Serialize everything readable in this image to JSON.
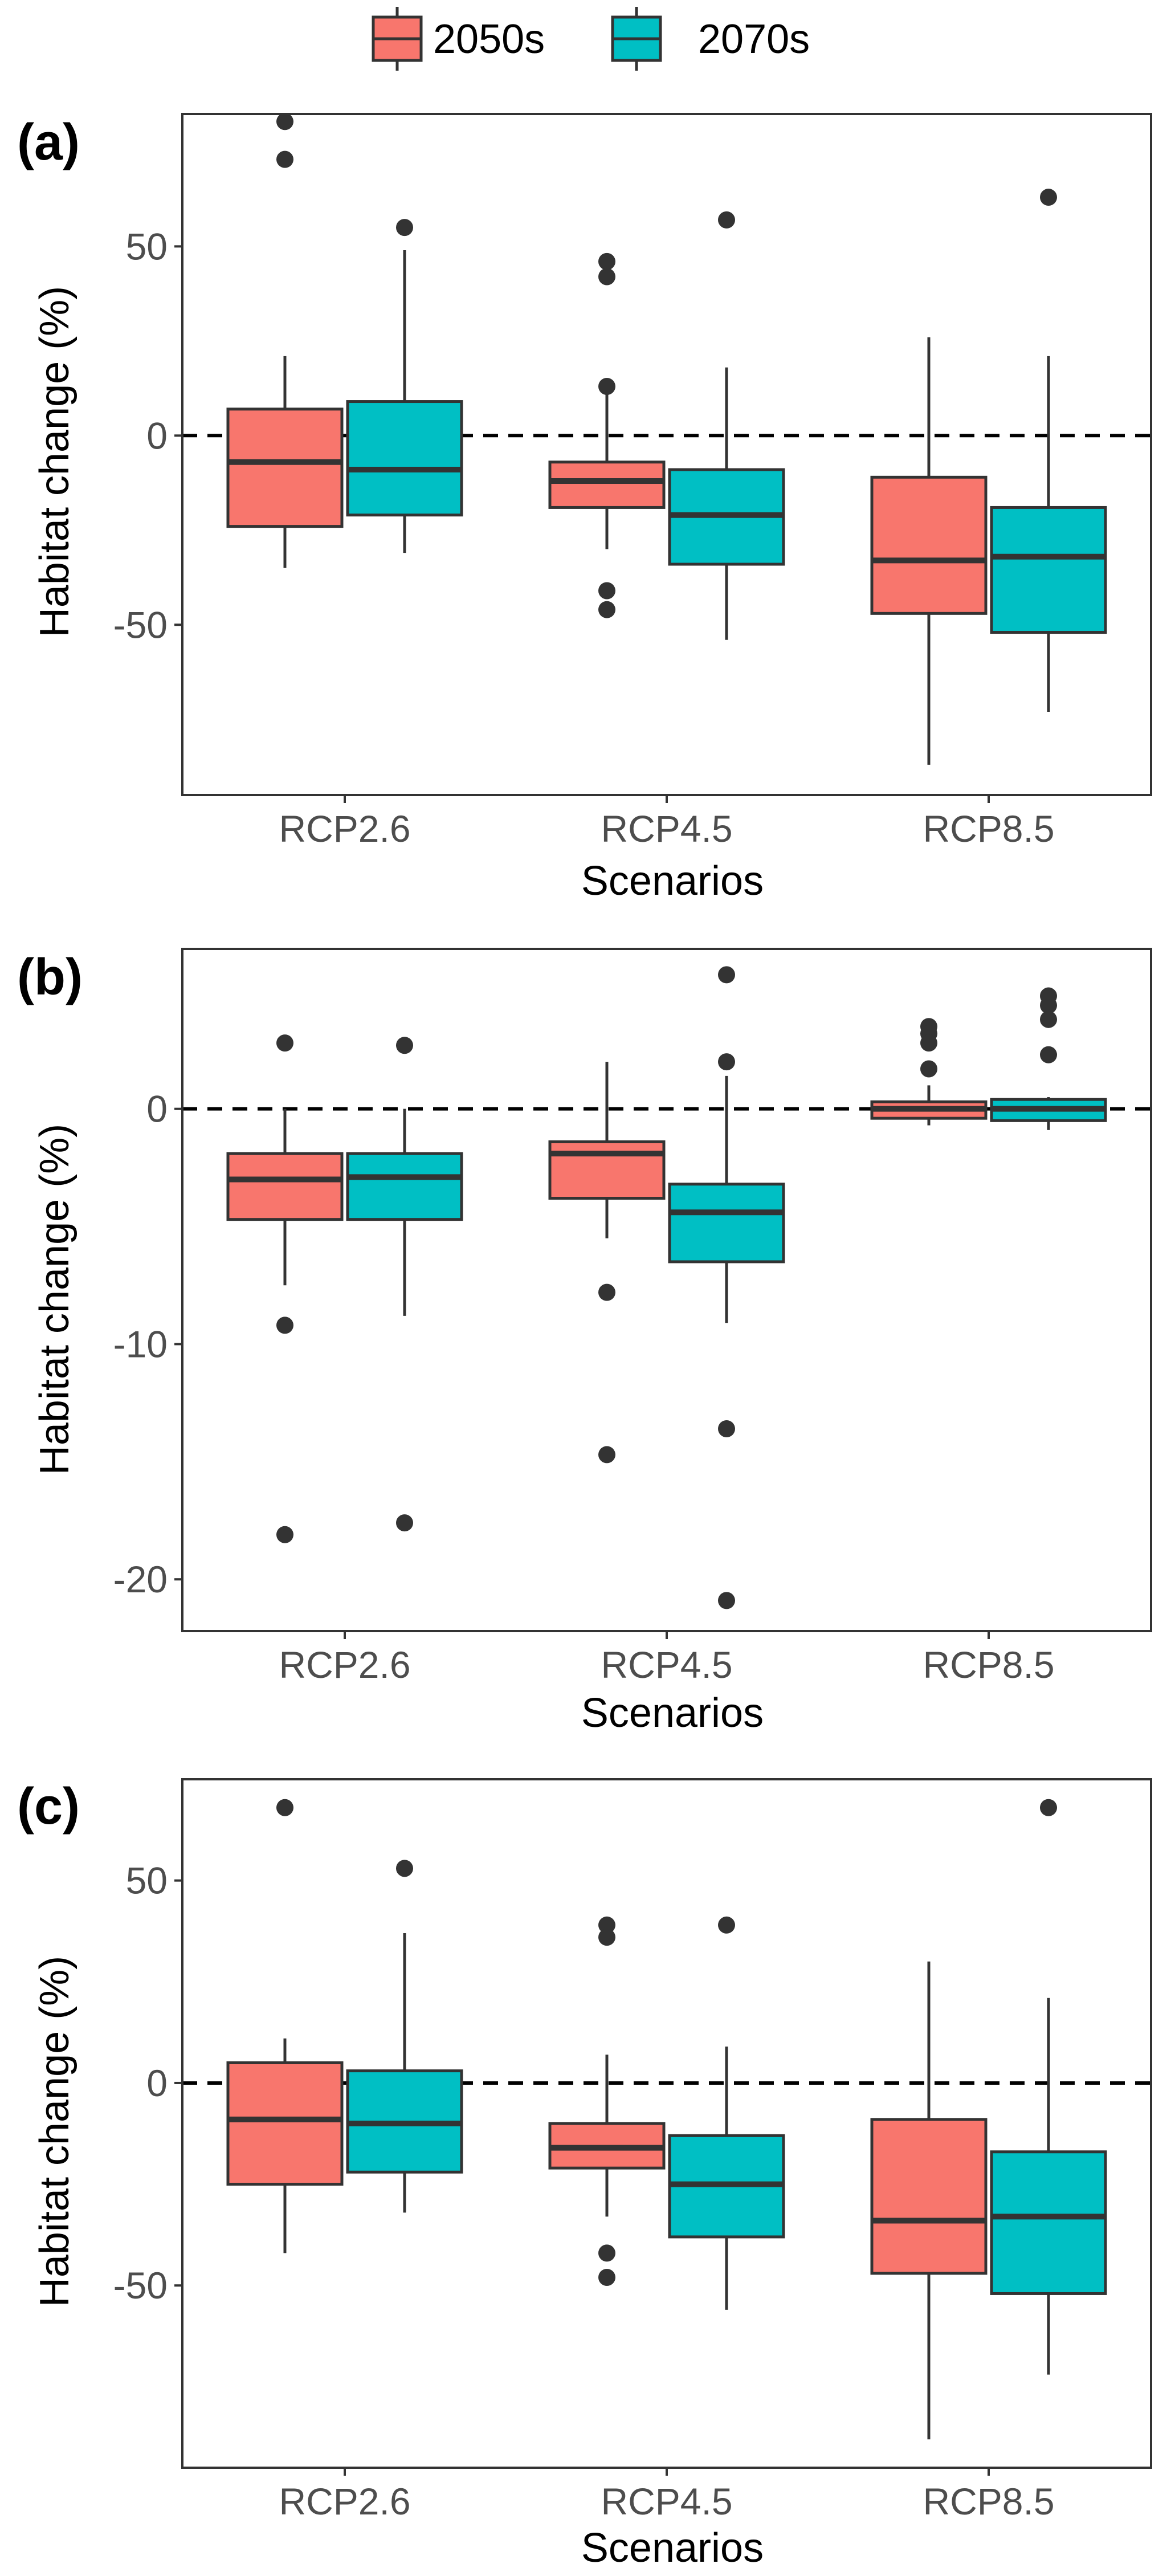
{
  "legend": {
    "items": [
      {
        "label": "2050s",
        "color": "#F8766D"
      },
      {
        "label": "2070s",
        "color": "#00BFC4"
      }
    ]
  },
  "colors": {
    "line": "#333333",
    "panel_border": "#333333",
    "zero_line": "#000000"
  },
  "chart_data": [
    {
      "type": "boxplot",
      "panel_label": "(a)",
      "xlabel": "Scenarios",
      "ylabel": "Habitat change (%)",
      "categories": [
        "RCP2.6",
        "RCP4.5",
        "RCP8.5"
      ],
      "yticks": [
        50,
        0,
        -50
      ],
      "ytick_labels": [
        "50",
        "0",
        "-50"
      ],
      "ylim": [
        -95,
        85
      ],
      "reference_line": 0,
      "series": [
        {
          "name": "2050s",
          "boxes": [
            {
              "min": -35,
              "q1": -24,
              "median": -7,
              "q3": 7,
              "max": 21,
              "outliers": [
                83,
                73
              ]
            },
            {
              "min": -30,
              "q1": -19,
              "median": -12,
              "q3": -7,
              "max": 11,
              "outliers": [
                46,
                42,
                13,
                -41,
                -46
              ]
            },
            {
              "min": -87,
              "q1": -47,
              "median": -33,
              "q3": -11,
              "max": 26,
              "outliers": []
            }
          ]
        },
        {
          "name": "2070s",
          "boxes": [
            {
              "min": -31,
              "q1": -21,
              "median": -9,
              "q3": 9,
              "max": 49,
              "outliers": [
                55
              ]
            },
            {
              "min": -54,
              "q1": -34,
              "median": -21,
              "q3": -9,
              "max": 18,
              "outliers": [
                57
              ]
            },
            {
              "min": -73,
              "q1": -52,
              "median": -32,
              "q3": -19,
              "max": 21,
              "outliers": [
                63
              ]
            }
          ]
        }
      ]
    },
    {
      "type": "boxplot",
      "panel_label": "(b)",
      "xlabel": "Scenarios",
      "ylabel": "Habitat change (%)",
      "categories": [
        "RCP2.6",
        "RCP4.5",
        "RCP8.5"
      ],
      "yticks": [
        0,
        -10,
        -20
      ],
      "ytick_labels": [
        "0",
        "-10",
        "-20"
      ],
      "ylim": [
        -22.2,
        6.8
      ],
      "reference_line": 0,
      "series": [
        {
          "name": "2050s",
          "boxes": [
            {
              "min": -7.5,
              "q1": -4.7,
              "median": -3,
              "q3": -1.9,
              "max": 0,
              "outliers": [
                2.8,
                -9.2,
                -18.1
              ]
            },
            {
              "min": -5.5,
              "q1": -3.8,
              "median": -1.9,
              "q3": -1.4,
              "max": 2,
              "outliers": [
                -7.8,
                -14.7
              ]
            },
            {
              "min": -0.7,
              "q1": -0.4,
              "median": 0,
              "q3": 0.3,
              "max": 1,
              "outliers": [
                3.5,
                3.2,
                2.8,
                1.7
              ]
            }
          ]
        },
        {
          "name": "2070s",
          "boxes": [
            {
              "min": -8.8,
              "q1": -4.7,
              "median": -2.9,
              "q3": -1.9,
              "max": 0,
              "outliers": [
                2.7,
                -17.6
              ]
            },
            {
              "min": -9.1,
              "q1": -6.5,
              "median": -4.4,
              "q3": -3.2,
              "max": 1.4,
              "outliers": [
                5.7,
                2.0,
                -13.6,
                -20.9
              ]
            },
            {
              "min": -0.9,
              "q1": -0.5,
              "median": 0,
              "q3": 0.4,
              "max": 0.5,
              "outliers": [
                4.8,
                4.4,
                3.8,
                2.3
              ]
            }
          ]
        }
      ]
    },
    {
      "type": "boxplot",
      "panel_label": "(c)",
      "xlabel": "Scenarios",
      "ylabel": "Habitat change (%)",
      "categories": [
        "RCP2.6",
        "RCP4.5",
        "RCP8.5"
      ],
      "yticks": [
        50,
        0,
        -50
      ],
      "ytick_labels": [
        "50",
        "0",
        "-50"
      ],
      "ylim": [
        -95,
        75
      ],
      "reference_line": 0,
      "series": [
        {
          "name": "2050s",
          "boxes": [
            {
              "min": -42,
              "q1": -25,
              "median": -9,
              "q3": 5,
              "max": 11,
              "outliers": [
                68
              ]
            },
            {
              "min": -33,
              "q1": -21,
              "median": -16,
              "q3": -10,
              "max": 7,
              "outliers": [
                39,
                36,
                -42,
                -48
              ]
            },
            {
              "min": -88,
              "q1": -47,
              "median": -34,
              "q3": -9,
              "max": 30,
              "outliers": []
            }
          ]
        },
        {
          "name": "2070s",
          "boxes": [
            {
              "min": -32,
              "q1": -22,
              "median": -10,
              "q3": 3,
              "max": 37,
              "outliers": [
                53
              ]
            },
            {
              "min": -56,
              "q1": -38,
              "median": -25,
              "q3": -13,
              "max": 9,
              "outliers": [
                39
              ]
            },
            {
              "min": -72,
              "q1": -52,
              "median": -33,
              "q3": -17,
              "max": 21,
              "outliers": [
                68
              ]
            }
          ]
        }
      ]
    }
  ]
}
